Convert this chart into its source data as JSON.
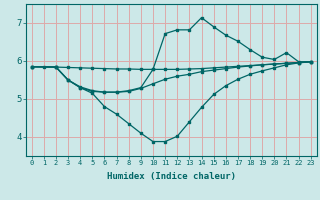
{
  "xlabel": "Humidex (Indice chaleur)",
  "ylabel": "",
  "xlim": [
    -0.5,
    23.5
  ],
  "ylim": [
    3.5,
    7.5
  ],
  "yticks": [
    4,
    5,
    6,
    7
  ],
  "xticks": [
    0,
    1,
    2,
    3,
    4,
    5,
    6,
    7,
    8,
    9,
    10,
    11,
    12,
    13,
    14,
    15,
    16,
    17,
    18,
    19,
    20,
    21,
    22,
    23
  ],
  "bg_color": "#cce8e8",
  "line_color": "#006666",
  "grid_color": "#ddaaaa",
  "curve1_x": [
    0,
    1,
    2,
    3,
    4,
    5,
    6,
    7,
    8,
    9,
    10,
    11,
    12,
    13,
    14,
    15,
    16,
    17,
    18,
    19,
    20,
    21,
    22,
    23
  ],
  "curve1_y": [
    5.85,
    5.85,
    5.84,
    5.83,
    5.82,
    5.81,
    5.8,
    5.79,
    5.79,
    5.78,
    5.78,
    5.78,
    5.78,
    5.79,
    5.8,
    5.82,
    5.84,
    5.86,
    5.88,
    5.9,
    5.92,
    5.94,
    5.96,
    5.98
  ],
  "curve2_x": [
    0,
    2,
    3,
    4,
    5,
    6,
    7,
    8,
    9,
    10,
    11,
    12,
    13,
    14,
    15,
    16,
    17,
    18,
    19,
    20,
    21,
    22,
    23
  ],
  "curve2_y": [
    5.85,
    5.84,
    5.5,
    5.32,
    5.22,
    5.18,
    5.18,
    5.2,
    5.28,
    5.4,
    5.52,
    5.6,
    5.65,
    5.72,
    5.76,
    5.8,
    5.84,
    5.87,
    5.9,
    5.92,
    5.94,
    5.96,
    5.98
  ],
  "curve3_x": [
    0,
    2,
    3,
    4,
    5,
    6,
    7,
    8,
    9,
    10,
    11,
    12,
    13,
    14,
    15,
    16,
    17,
    18,
    19,
    20,
    21,
    22,
    23
  ],
  "curve3_y": [
    5.85,
    5.84,
    5.5,
    5.3,
    5.15,
    4.8,
    4.6,
    4.35,
    4.1,
    3.88,
    3.88,
    4.02,
    4.4,
    4.78,
    5.12,
    5.35,
    5.52,
    5.65,
    5.74,
    5.82,
    5.9,
    5.95,
    5.98
  ],
  "curve4_x": [
    0,
    2,
    3,
    4,
    5,
    6,
    7,
    8,
    9,
    10,
    11,
    12,
    13,
    14,
    15,
    16,
    17,
    18,
    19,
    20,
    21,
    22,
    23
  ],
  "curve4_y": [
    5.85,
    5.84,
    5.5,
    5.3,
    5.2,
    5.18,
    5.18,
    5.22,
    5.3,
    5.78,
    6.72,
    6.82,
    6.82,
    7.14,
    6.9,
    6.68,
    6.52,
    6.3,
    6.1,
    6.04,
    6.22,
    5.98,
    5.98
  ]
}
